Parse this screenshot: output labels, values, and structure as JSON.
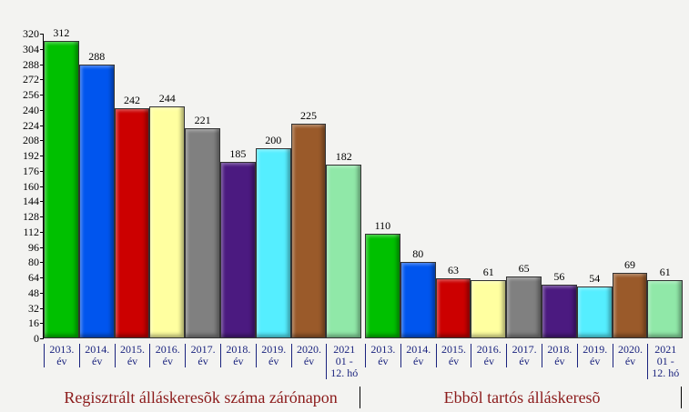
{
  "chart_data": {
    "type": "bar",
    "categories": [
      "Regisztrált álláskeresõk száma zárónapon",
      "Ebbõl tartós álláskeresõ"
    ],
    "series": [
      {
        "name": "2013. év",
        "color": "#00c000",
        "values": [
          312,
          110
        ]
      },
      {
        "name": "2014. év",
        "color": "#0055ee",
        "values": [
          288,
          80
        ]
      },
      {
        "name": "2015. év",
        "color": "#cc0000",
        "values": [
          242,
          63
        ]
      },
      {
        "name": "2016. év",
        "color": "#ffffa0",
        "values": [
          244,
          61
        ]
      },
      {
        "name": "2017. év",
        "color": "#808080",
        "values": [
          221,
          65
        ]
      },
      {
        "name": "2018. év",
        "color": "#4b1a80",
        "values": [
          185,
          56
        ]
      },
      {
        "name": "2019. év",
        "color": "#55eeff",
        "values": [
          200,
          54
        ]
      },
      {
        "name": "2020. év",
        "color": "#9a5a2a",
        "values": [
          225,
          69
        ]
      },
      {
        "name": "2021 01 - 12. hó",
        "color": "#90e8a8",
        "values": [
          182,
          61
        ]
      }
    ],
    "ylim": [
      0,
      320
    ],
    "yticks": [
      0,
      16,
      32,
      48,
      64,
      80,
      96,
      112,
      128,
      144,
      160,
      176,
      192,
      208,
      224,
      240,
      256,
      272,
      288,
      304,
      320
    ]
  }
}
